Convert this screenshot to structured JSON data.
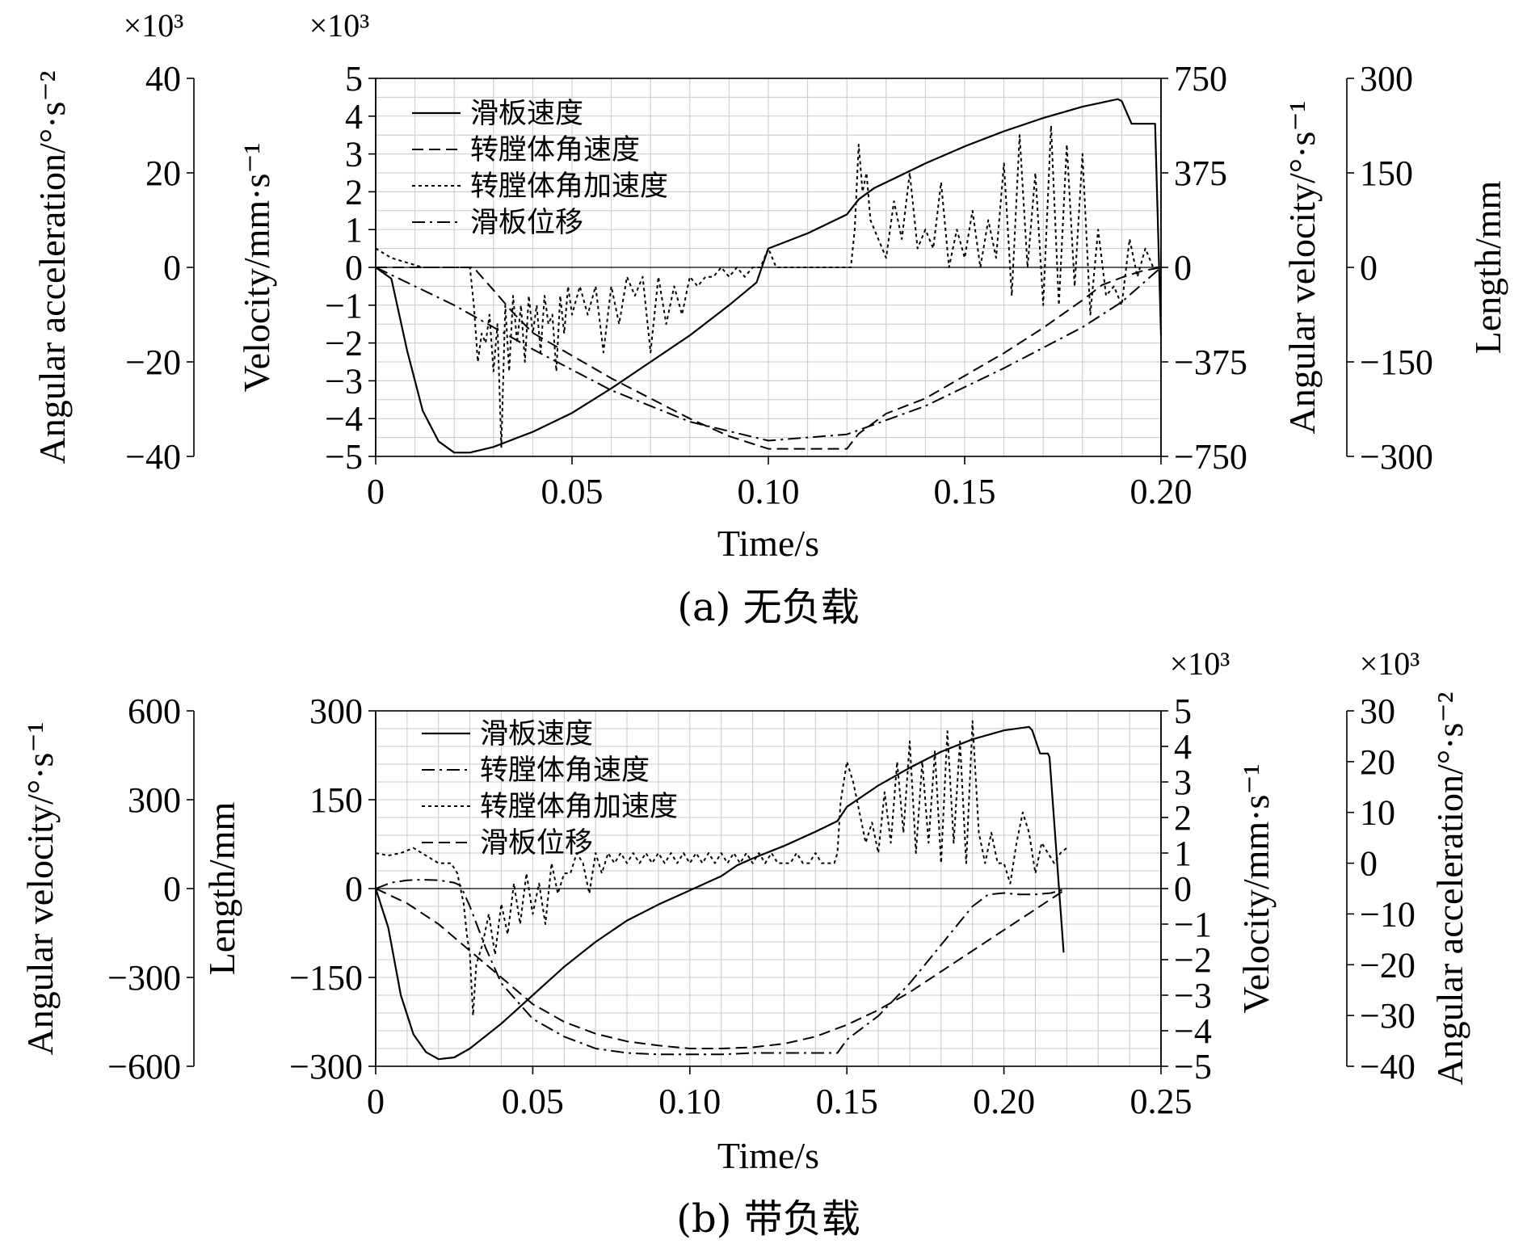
{
  "chart_data": [
    {
      "id": "a",
      "type": "line",
      "caption": "(a) 无负载",
      "xlabel": "Time/s",
      "xlim": [
        0,
        0.2
      ],
      "xticks": [
        0,
        0.05,
        0.1,
        0.15,
        0.2
      ],
      "xtick_labels": [
        "0",
        "0.05",
        "0.10",
        "0.15",
        "0.20"
      ],
      "grid": true,
      "legend_position": "top-left",
      "axes": {
        "velocity": {
          "label": "Velocity/mm·s⁻¹",
          "multiplier": "×10³",
          "range": [
            -5,
            5
          ],
          "ticks": [
            -5,
            -4,
            -3,
            -2,
            -1,
            0,
            1,
            2,
            3,
            4,
            5
          ],
          "tick_labels": [
            "−5",
            "−4",
            "−3",
            "−2",
            "−1",
            "0",
            "1",
            "2",
            "3",
            "4",
            "5"
          ]
        },
        "angular_acceleration": {
          "label": "Angular acceleration/°·s⁻²",
          "multiplier": "×10³",
          "range": [
            -40,
            40
          ],
          "ticks": [
            -40,
            -20,
            0,
            20,
            40
          ],
          "tick_labels": [
            "−40",
            "−20",
            "0",
            "20",
            "40"
          ]
        },
        "angular_velocity": {
          "label": "Angular velocity/°·s⁻¹",
          "range": [
            -750,
            750
          ],
          "ticks": [
            -750,
            -375,
            0,
            375,
            750
          ],
          "tick_labels": [
            "−750",
            "−375",
            "0",
            "375",
            "750"
          ]
        },
        "length": {
          "label": "Length/mm",
          "range": [
            -300,
            300
          ],
          "ticks": [
            -300,
            -150,
            0,
            150,
            300
          ],
          "tick_labels": [
            "−300",
            "−150",
            "0",
            "150",
            "300"
          ]
        }
      },
      "series": [
        {
          "name": "滑板速度",
          "axis": "velocity",
          "style": "solid",
          "x": [
            0,
            0.004,
            0.008,
            0.012,
            0.016,
            0.02,
            0.024,
            0.03,
            0.04,
            0.05,
            0.06,
            0.07,
            0.08,
            0.09,
            0.097,
            0.1,
            0.11,
            0.12,
            0.123,
            0.127,
            0.14,
            0.15,
            0.16,
            0.17,
            0.18,
            0.189,
            0.19,
            0.1925,
            0.198,
            0.1985,
            0.2
          ],
          "y": [
            0,
            -0.3,
            -2.2,
            -3.8,
            -4.6,
            -4.9,
            -4.9,
            -4.75,
            -4.35,
            -3.85,
            -3.2,
            -2.5,
            -1.8,
            -1.0,
            -0.4,
            0.5,
            0.9,
            1.4,
            1.8,
            2.1,
            2.75,
            3.2,
            3.6,
            3.95,
            4.25,
            4.45,
            4.4,
            3.8,
            3.8,
            3.8,
            -1.8
          ]
        },
        {
          "name": "转膛体角速度",
          "axis": "angular_velocity",
          "style": "dashed",
          "x": [
            0,
            0.006,
            0.012,
            0.018,
            0.025,
            0.026,
            0.03,
            0.035,
            0.04,
            0.05,
            0.06,
            0.07,
            0.08,
            0.09,
            0.1,
            0.11,
            0.12,
            0.123,
            0.13,
            0.14,
            0.15,
            0.16,
            0.17,
            0.18,
            0.185,
            0.19,
            0.195,
            0.2
          ],
          "y": [
            0,
            0,
            0,
            0,
            0,
            -20,
            -90,
            -180,
            -260,
            -350,
            -440,
            -520,
            -600,
            -670,
            -720,
            -720,
            -720,
            -660,
            -580,
            -520,
            -430,
            -340,
            -240,
            -130,
            -70,
            -40,
            -15,
            0
          ]
        },
        {
          "name": "转膛体角加速度",
          "axis": "angular_acceleration",
          "style": "dotted",
          "x": [
            0,
            0.004,
            0.008,
            0.012,
            0.016,
            0.02,
            0.024,
            0.025,
            0.026,
            0.027,
            0.028,
            0.029,
            0.03,
            0.031,
            0.032,
            0.033,
            0.034,
            0.035,
            0.036,
            0.037,
            0.038,
            0.039,
            0.04,
            0.041,
            0.042,
            0.043,
            0.044,
            0.045,
            0.046,
            0.047,
            0.048,
            0.049,
            0.05,
            0.052,
            0.054,
            0.056,
            0.058,
            0.06,
            0.062,
            0.064,
            0.066,
            0.068,
            0.07,
            0.072,
            0.074,
            0.076,
            0.078,
            0.08,
            0.082,
            0.084,
            0.086,
            0.088,
            0.09,
            0.092,
            0.094,
            0.096,
            0.098,
            0.1,
            0.102,
            0.104,
            0.106,
            0.108,
            0.11,
            0.112,
            0.114,
            0.116,
            0.118,
            0.119,
            0.12,
            0.121,
            0.122,
            0.123,
            0.124,
            0.125,
            0.126,
            0.128,
            0.13,
            0.132,
            0.134,
            0.136,
            0.138,
            0.14,
            0.142,
            0.144,
            0.146,
            0.148,
            0.15,
            0.152,
            0.154,
            0.156,
            0.158,
            0.16,
            0.162,
            0.164,
            0.166,
            0.168,
            0.17,
            0.172,
            0.174,
            0.176,
            0.178,
            0.18,
            0.182,
            0.184,
            0.186,
            0.188,
            0.19,
            0.192,
            0.194,
            0.196,
            0.198,
            0.2
          ],
          "y": [
            4,
            2,
            1,
            0,
            0,
            0,
            0,
            -8,
            -20,
            -14,
            -16,
            -10,
            -22,
            -12,
            -38,
            -8,
            -22,
            -6,
            -16,
            -8,
            -20,
            -6,
            -14,
            -8,
            -18,
            -6,
            -12,
            -10,
            -22,
            -6,
            -14,
            -4,
            -10,
            -4,
            -10,
            -4,
            -18,
            -4,
            -12,
            -2,
            -6,
            -2,
            -18,
            -2,
            -12,
            -4,
            -10,
            -2,
            -4,
            -2,
            -2,
            0,
            -2,
            0,
            -2,
            0,
            0,
            4,
            0,
            0,
            0,
            0,
            0,
            0,
            0,
            0,
            0,
            0,
            0,
            0,
            8,
            26,
            16,
            20,
            10,
            6,
            2,
            14,
            6,
            20,
            4,
            8,
            4,
            18,
            0,
            8,
            2,
            12,
            0,
            10,
            2,
            22,
            -6,
            28,
            0,
            20,
            -8,
            30,
            -8,
            26,
            -4,
            24,
            -10,
            8,
            -6,
            -4,
            -8,
            6,
            -2,
            4,
            0,
            0
          ]
        },
        {
          "name": "滑板位移",
          "axis": "length",
          "style": "dashdot",
          "x": [
            0,
            0.02,
            0.04,
            0.06,
            0.08,
            0.1,
            0.12,
            0.14,
            0.16,
            0.18,
            0.19,
            0.2
          ],
          "y": [
            0,
            -60,
            -130,
            -195,
            -245,
            -275,
            -265,
            -220,
            -160,
            -95,
            -55,
            0
          ]
        }
      ]
    },
    {
      "id": "b",
      "type": "line",
      "caption": "(b) 带负载",
      "xlabel": "Time/s",
      "xlim": [
        0,
        0.25
      ],
      "xticks": [
        0,
        0.05,
        0.1,
        0.15,
        0.2,
        0.25
      ],
      "xtick_labels": [
        "0",
        "0.05",
        "0.10",
        "0.15",
        "0.20",
        "0.25"
      ],
      "grid": true,
      "legend_position": "top-left",
      "axes": {
        "angular_velocity": {
          "label": "Angular velocity/°·s⁻¹",
          "range": [
            -600,
            600
          ],
          "ticks": [
            -600,
            -300,
            0,
            300,
            600
          ],
          "tick_labels": [
            "−600",
            "−300",
            "0",
            "300",
            "600"
          ]
        },
        "length": {
          "label": "Length/mm",
          "range": [
            -300,
            300
          ],
          "ticks": [
            -300,
            -150,
            0,
            150,
            300
          ],
          "tick_labels": [
            "−300",
            "−150",
            "0",
            "150",
            "300"
          ]
        },
        "velocity": {
          "label": "Velocity/mm·s⁻¹",
          "multiplier": "×10³",
          "range": [
            -5,
            5
          ],
          "ticks": [
            -5,
            -4,
            -3,
            -2,
            -1,
            0,
            1,
            2,
            3,
            4,
            5
          ],
          "tick_labels": [
            "−5",
            "−4",
            "−3",
            "−2",
            "−1",
            "0",
            "1",
            "2",
            "3",
            "4",
            "5"
          ]
        },
        "angular_acceleration": {
          "label": "Angular acceleration/°·s⁻²",
          "multiplier": "×10³",
          "range": [
            -40,
            30
          ],
          "ticks": [
            -40,
            -30,
            -20,
            -10,
            0,
            10,
            20,
            30
          ],
          "tick_labels": [
            "−40",
            "−30",
            "−20",
            "−10",
            "0",
            "10",
            "20",
            "30"
          ]
        }
      },
      "series": [
        {
          "name": "滑板速度",
          "axis": "velocity",
          "style": "solid",
          "x": [
            0,
            0.004,
            0.008,
            0.012,
            0.016,
            0.02,
            0.025,
            0.03,
            0.04,
            0.05,
            0.06,
            0.07,
            0.08,
            0.09,
            0.1,
            0.11,
            0.115,
            0.12,
            0.13,
            0.14,
            0.147,
            0.15,
            0.16,
            0.17,
            0.18,
            0.19,
            0.2,
            0.208,
            0.209,
            0.2115,
            0.214,
            0.2145,
            0.219
          ],
          "y": [
            0,
            -1.1,
            -3.0,
            -4.1,
            -4.6,
            -4.8,
            -4.75,
            -4.5,
            -3.8,
            -3.0,
            -2.2,
            -1.5,
            -0.9,
            -0.45,
            -0.05,
            0.35,
            0.65,
            0.85,
            1.2,
            1.6,
            1.9,
            2.3,
            2.9,
            3.4,
            3.85,
            4.2,
            4.45,
            4.55,
            4.45,
            3.8,
            3.8,
            3.7,
            -1.8
          ]
        },
        {
          "name": "转膛体角速度",
          "axis": "angular_velocity",
          "style": "dashdot",
          "x": [
            0,
            0.005,
            0.01,
            0.015,
            0.02,
            0.025,
            0.027,
            0.03,
            0.035,
            0.04,
            0.05,
            0.06,
            0.07,
            0.08,
            0.09,
            0.1,
            0.11,
            0.12,
            0.13,
            0.14,
            0.147,
            0.15,
            0.16,
            0.17,
            0.18,
            0.19,
            0.195,
            0.2,
            0.205,
            0.21,
            0.215,
            0.22
          ],
          "y": [
            0,
            20,
            28,
            30,
            28,
            20,
            10,
            -60,
            -200,
            -320,
            -440,
            -500,
            -540,
            -555,
            -560,
            -560,
            -560,
            -555,
            -555,
            -555,
            -555,
            -510,
            -430,
            -320,
            -190,
            -60,
            -20,
            -15,
            -20,
            -20,
            -15,
            0
          ]
        },
        {
          "name": "转膛体角加速度",
          "axis": "angular_acceleration",
          "style": "dotted",
          "x": [
            0,
            0.004,
            0.008,
            0.012,
            0.016,
            0.02,
            0.024,
            0.026,
            0.028,
            0.029,
            0.03,
            0.031,
            0.032,
            0.034,
            0.036,
            0.038,
            0.04,
            0.042,
            0.044,
            0.046,
            0.048,
            0.05,
            0.052,
            0.054,
            0.056,
            0.058,
            0.06,
            0.062,
            0.064,
            0.066,
            0.068,
            0.07,
            0.072,
            0.074,
            0.076,
            0.078,
            0.08,
            0.082,
            0.084,
            0.086,
            0.088,
            0.09,
            0.092,
            0.094,
            0.096,
            0.098,
            0.1,
            0.102,
            0.104,
            0.106,
            0.108,
            0.11,
            0.112,
            0.114,
            0.116,
            0.118,
            0.12,
            0.122,
            0.124,
            0.126,
            0.128,
            0.13,
            0.132,
            0.134,
            0.136,
            0.138,
            0.14,
            0.142,
            0.144,
            0.146,
            0.147,
            0.148,
            0.15,
            0.152,
            0.154,
            0.156,
            0.158,
            0.16,
            0.162,
            0.164,
            0.166,
            0.168,
            0.17,
            0.172,
            0.174,
            0.176,
            0.178,
            0.18,
            0.182,
            0.184,
            0.186,
            0.188,
            0.19,
            0.192,
            0.194,
            0.196,
            0.198,
            0.2,
            0.202,
            0.204,
            0.206,
            0.208,
            0.21,
            0.212,
            0.214,
            0.216,
            0.218,
            0.22
          ],
          "y": [
            2,
            1.5,
            2,
            3,
            1.5,
            0,
            0,
            -2,
            -8,
            -14,
            -18,
            -30,
            -20,
            -16,
            -10,
            -18,
            -8,
            -14,
            -4,
            -12,
            -2,
            -10,
            -4,
            -12,
            0,
            -6,
            -2,
            -2,
            2,
            0,
            -6,
            2,
            -2,
            2,
            0,
            2,
            0,
            2,
            0,
            2,
            0,
            2,
            0,
            2,
            0,
            2,
            0,
            2,
            0,
            2,
            0,
            2,
            0,
            2,
            0,
            2,
            0,
            2,
            0,
            2,
            0,
            0,
            0,
            2,
            0,
            0,
            2,
            0,
            0,
            0,
            2,
            12,
            20,
            16,
            10,
            4,
            8,
            2,
            14,
            4,
            20,
            6,
            24,
            2,
            20,
            4,
            22,
            0,
            26,
            4,
            24,
            0,
            28,
            6,
            0,
            6,
            0,
            0,
            -4,
            4,
            10,
            6,
            -2,
            4,
            2,
            0,
            2,
            3
          ]
        },
        {
          "name": "滑板位移",
          "axis": "length",
          "style": "dashed",
          "x": [
            0,
            0.01,
            0.02,
            0.03,
            0.04,
            0.05,
            0.06,
            0.07,
            0.08,
            0.09,
            0.1,
            0.11,
            0.12,
            0.13,
            0.14,
            0.15,
            0.16,
            0.17,
            0.18,
            0.19,
            0.2,
            0.21,
            0.22
          ],
          "y": [
            0,
            -25,
            -60,
            -105,
            -150,
            -195,
            -225,
            -245,
            -258,
            -265,
            -270,
            -270,
            -268,
            -262,
            -250,
            -230,
            -205,
            -175,
            -140,
            -105,
            -70,
            -35,
            0
          ]
        }
      ]
    }
  ]
}
